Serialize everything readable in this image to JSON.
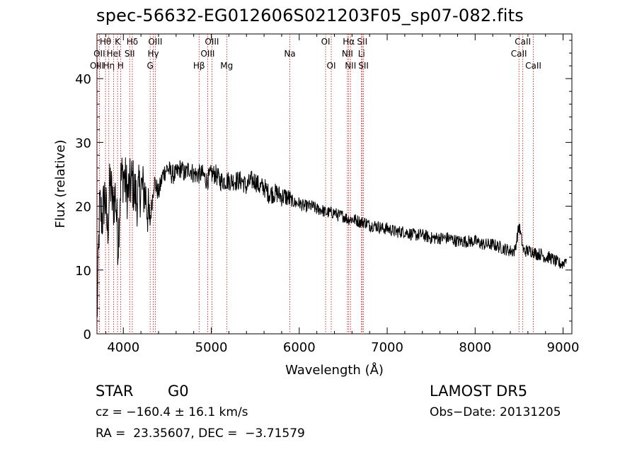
{
  "title": "spec-56632-EG012606S021203F05_sp07-082.fits",
  "footer": {
    "class_label": "STAR",
    "subclass_label": "G0",
    "survey_label": "LAMOST DR5",
    "cz_text": "cz = −160.4 ± 16.1 km/s",
    "obs_date_text": "Obs−Date: 20131205",
    "radec_text": "RA =  23.35607, DEC =  −3.71579"
  },
  "chart_data": {
    "type": "line",
    "title": "spec-56632-EG012606S021203F05_sp07-082.fits",
    "xlabel": "Wavelength (Å)",
    "ylabel": "Flux (relative)",
    "xlim": [
      3700,
      9100
    ],
    "ylim": [
      0,
      47
    ],
    "x_ticks": [
      4000,
      5000,
      6000,
      7000,
      8000,
      9000
    ],
    "y_ticks": [
      0,
      10,
      20,
      30,
      40
    ],
    "grid": false,
    "line_color": "#000000",
    "marker_color": "#cc0000",
    "series": [
      {
        "x": [
          3700,
          3730,
          3760,
          3790,
          3820,
          3850,
          3880,
          3910,
          3940,
          3970,
          4000,
          4050,
          4100,
          4150,
          4200,
          4250,
          4300,
          4350,
          4400,
          4450,
          4500,
          4550,
          4600,
          4650,
          4700,
          4750,
          4800,
          4850,
          4900,
          4950,
          5000,
          5050,
          5100,
          5150,
          5200,
          5250,
          5300,
          5350,
          5400,
          5450,
          5500,
          5550,
          5600,
          5650,
          5700,
          5750,
          5800,
          5850,
          5900,
          5950,
          6000,
          6050,
          6100,
          6150,
          6200,
          6250,
          6300,
          6350,
          6400,
          6450,
          6500,
          6550,
          6600,
          6650,
          6700,
          6750,
          6800,
          6850,
          6900,
          6950,
          7000,
          7100,
          7200,
          7300,
          7400,
          7500,
          7600,
          7700,
          7800,
          7900,
          8000,
          8100,
          8200,
          8300,
          8400,
          8450,
          8500,
          8550,
          8600,
          8650,
          8700,
          8750,
          8800,
          8850,
          8900,
          8950,
          9000,
          9040
        ],
        "y": [
          2,
          20,
          18,
          22,
          16,
          24,
          20,
          22,
          14,
          24,
          25,
          22,
          24,
          21,
          23,
          22,
          17,
          24,
          22,
          25,
          26,
          25,
          25,
          26,
          25,
          26,
          25,
          25,
          25,
          24,
          25,
          25,
          24,
          24,
          24,
          24,
          24,
          24,
          23,
          24,
          24,
          23,
          23,
          22,
          22,
          22,
          21.5,
          21.5,
          21,
          20.5,
          20.5,
          20,
          20,
          20,
          19.5,
          19.5,
          19,
          19,
          19,
          18.5,
          18.5,
          18,
          18,
          17.8,
          17.5,
          17.5,
          17,
          17,
          16.8,
          16.5,
          16.5,
          16,
          16,
          15.5,
          15.5,
          15,
          15,
          15,
          14.5,
          14.5,
          14.5,
          14,
          14,
          13.5,
          13,
          13,
          17,
          13,
          13,
          13,
          12.5,
          12.5,
          12,
          12,
          11.5,
          11,
          11,
          12
        ]
      }
    ],
    "spectral_lines": [
      {
        "label": "Hθ",
        "x": 3797,
        "row": 0
      },
      {
        "label": "OII",
        "x": 3727,
        "row": 1
      },
      {
        "label": "OIII",
        "x": 3700,
        "row": 2
      },
      {
        "label": "Hη",
        "x": 3835,
        "row": 2
      },
      {
        "label": "K",
        "x": 3934,
        "row": 0
      },
      {
        "label": "HeI",
        "x": 3889,
        "row": 1
      },
      {
        "label": "H",
        "x": 3969,
        "row": 2
      },
      {
        "label": "Hδ",
        "x": 4102,
        "row": 0
      },
      {
        "label": "SII",
        "x": 4072,
        "row": 1
      },
      {
        "label": "OIII",
        "x": 4363,
        "row": 0
      },
      {
        "label": "Hγ",
        "x": 4340,
        "row": 1
      },
      {
        "label": "G",
        "x": 4305,
        "row": 2
      },
      {
        "label": "Hβ",
        "x": 4861,
        "row": 2
      },
      {
        "label": "OIII",
        "x": 5007,
        "row": 0
      },
      {
        "label": "OIII",
        "x": 4959,
        "row": 1
      },
      {
        "label": "Mg",
        "x": 5175,
        "row": 2
      },
      {
        "label": "Na",
        "x": 5893,
        "row": 1
      },
      {
        "label": "OI",
        "x": 6300,
        "row": 0
      },
      {
        "label": "OI",
        "x": 6364,
        "row": 2
      },
      {
        "label": "Hα",
        "x": 6563,
        "row": 0
      },
      {
        "label": "NII",
        "x": 6548,
        "row": 1
      },
      {
        "label": "NII",
        "x": 6583,
        "row": 2
      },
      {
        "label": "SII",
        "x": 6716,
        "row": 0
      },
      {
        "label": "Li",
        "x": 6708,
        "row": 1
      },
      {
        "label": "SII",
        "x": 6731,
        "row": 2
      },
      {
        "label": "CaII",
        "x": 8542,
        "row": 0
      },
      {
        "label": "CaII",
        "x": 8498,
        "row": 1
      },
      {
        "label": "CaII",
        "x": 8662,
        "row": 2
      }
    ]
  }
}
